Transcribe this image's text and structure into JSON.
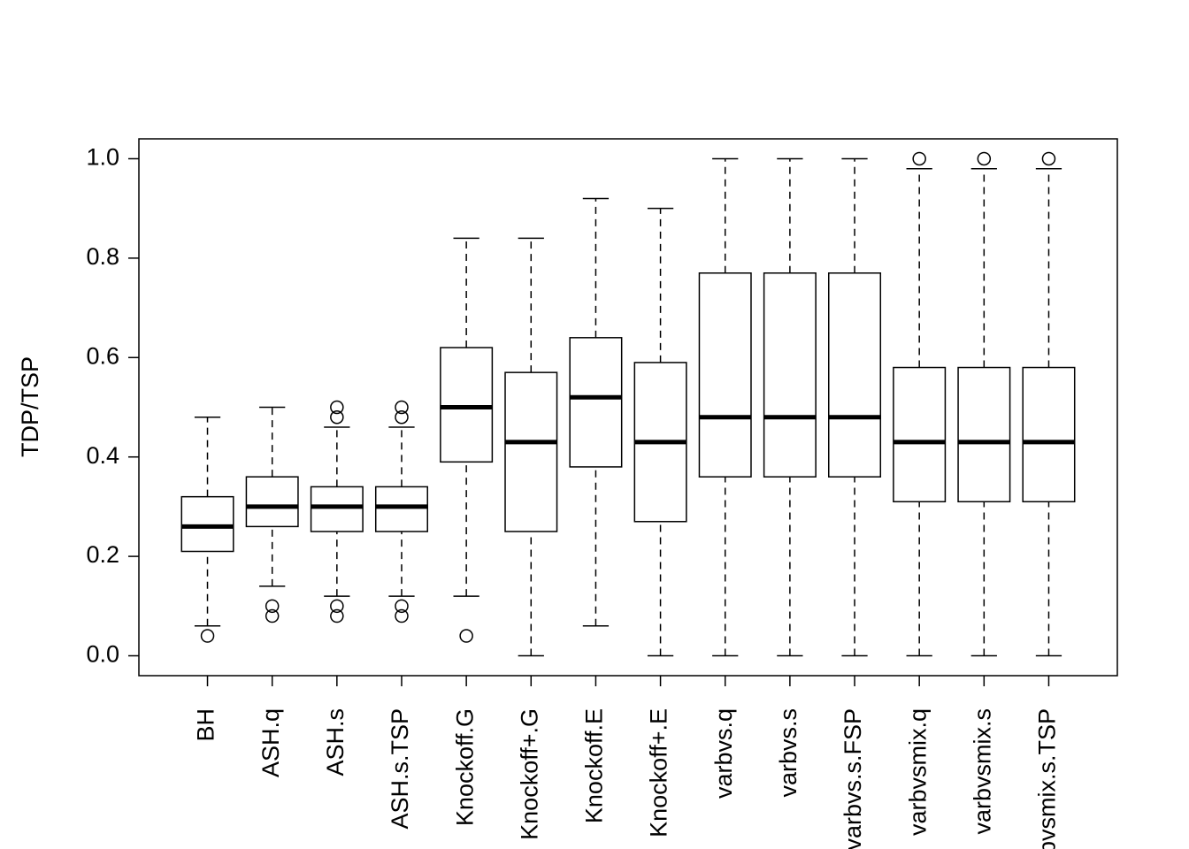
{
  "chart_data": {
    "type": "box",
    "y_label": "TDP/TSP",
    "categories": [
      "BH",
      "ASH.q",
      "ASH.s",
      "ASH.s.TSP",
      "Knockoff.G",
      "Knockoff+.G",
      "Knockoff.E",
      "Knockoff+.E",
      "varbvs.q",
      "varbvs.s",
      "varbvs.s.FSP",
      "varbvsmix.q",
      "varbvsmix.s",
      "varbvsmix.s.TSP"
    ],
    "boxes": [
      {
        "whisker_low": 0.06,
        "q1": 0.21,
        "median": 0.26,
        "q3": 0.32,
        "whisker_high": 0.48,
        "outliers": [
          0.04
        ]
      },
      {
        "whisker_low": 0.14,
        "q1": 0.26,
        "median": 0.3,
        "q3": 0.36,
        "whisker_high": 0.5,
        "outliers": [
          0.1,
          0.08
        ]
      },
      {
        "whisker_low": 0.12,
        "q1": 0.25,
        "median": 0.3,
        "q3": 0.34,
        "whisker_high": 0.46,
        "outliers": [
          0.5,
          0.48,
          0.1,
          0.08
        ]
      },
      {
        "whisker_low": 0.12,
        "q1": 0.25,
        "median": 0.3,
        "q3": 0.34,
        "whisker_high": 0.46,
        "outliers": [
          0.5,
          0.48,
          0.1,
          0.08
        ]
      },
      {
        "whisker_low": 0.12,
        "q1": 0.39,
        "median": 0.5,
        "q3": 0.62,
        "whisker_high": 0.84,
        "outliers": [
          0.04
        ]
      },
      {
        "whisker_low": 0,
        "q1": 0.25,
        "median": 0.43,
        "q3": 0.57,
        "whisker_high": 0.84,
        "outliers": []
      },
      {
        "whisker_low": 0.06,
        "q1": 0.38,
        "median": 0.52,
        "q3": 0.64,
        "whisker_high": 0.92,
        "outliers": []
      },
      {
        "whisker_low": 0,
        "q1": 0.27,
        "median": 0.43,
        "q3": 0.59,
        "whisker_high": 0.9,
        "outliers": []
      },
      {
        "whisker_low": 0,
        "q1": 0.36,
        "median": 0.48,
        "q3": 0.77,
        "whisker_high": 1.0,
        "outliers": []
      },
      {
        "whisker_low": 0,
        "q1": 0.36,
        "median": 0.48,
        "q3": 0.77,
        "whisker_high": 1.0,
        "outliers": []
      },
      {
        "whisker_low": 0,
        "q1": 0.36,
        "median": 0.48,
        "q3": 0.77,
        "whisker_high": 1.0,
        "outliers": []
      },
      {
        "whisker_low": 0,
        "q1": 0.31,
        "median": 0.43,
        "q3": 0.58,
        "whisker_high": 0.98,
        "outliers": [
          1.0
        ]
      },
      {
        "whisker_low": 0,
        "q1": 0.31,
        "median": 0.43,
        "q3": 0.58,
        "whisker_high": 0.98,
        "outliers": [
          1.0
        ]
      },
      {
        "whisker_low": 0,
        "q1": 0.31,
        "median": 0.43,
        "q3": 0.58,
        "whisker_high": 0.98,
        "outliers": [
          1.0
        ]
      }
    ],
    "color": "#000000",
    "ylim": [
      -0.04,
      1.04
    ],
    "yticks": [
      {
        "value": 0,
        "label": "0.0"
      },
      0.2,
      0.4,
      0.6,
      0.8,
      {
        "value": 1,
        "label": "1.0"
      }
    ]
  }
}
